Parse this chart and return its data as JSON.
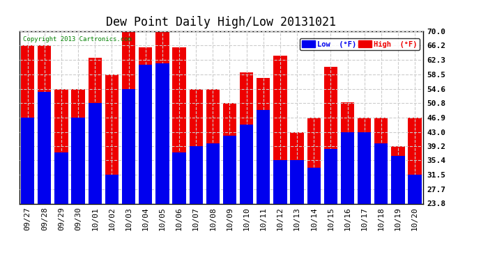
{
  "title": "Dew Point Daily High/Low 20131021",
  "copyright": "Copyright 2013 Cartronics.com",
  "dates": [
    "09/27",
    "09/28",
    "09/29",
    "09/30",
    "10/01",
    "10/02",
    "10/03",
    "10/04",
    "10/05",
    "10/06",
    "10/07",
    "10/08",
    "10/09",
    "10/10",
    "10/11",
    "10/12",
    "10/13",
    "10/14",
    "10/15",
    "10/16",
    "10/17",
    "10/18",
    "10/19",
    "10/20"
  ],
  "high": [
    66.2,
    66.2,
    54.6,
    54.6,
    63.0,
    58.5,
    69.8,
    65.8,
    70.0,
    65.8,
    54.6,
    54.6,
    50.8,
    59.0,
    57.5,
    63.5,
    43.0,
    46.9,
    60.5,
    51.0,
    46.9,
    46.9,
    39.2,
    46.9
  ],
  "low": [
    46.9,
    53.8,
    37.5,
    46.9,
    50.8,
    31.5,
    54.6,
    61.0,
    61.5,
    37.5,
    39.2,
    40.0,
    42.0,
    45.0,
    49.0,
    35.4,
    35.4,
    33.5,
    38.5,
    43.0,
    43.0,
    40.0,
    36.5,
    31.5
  ],
  "ylim_min": 23.8,
  "ylim_max": 70.0,
  "yticks": [
    23.8,
    27.7,
    31.5,
    35.4,
    39.2,
    43.0,
    46.9,
    50.8,
    54.6,
    58.5,
    62.3,
    66.2,
    70.0
  ],
  "bar_width": 0.8,
  "low_color": "#0000ee",
  "high_color": "#ee0000",
  "bg_color": "#ffffff",
  "plot_bg_color": "#ffffff",
  "grid_color": "#cccccc",
  "title_fontsize": 12,
  "tick_fontsize": 8,
  "copyright_color": "#008000",
  "legend_low_label": "Low  (°F)",
  "legend_high_label": "High  (°F)"
}
